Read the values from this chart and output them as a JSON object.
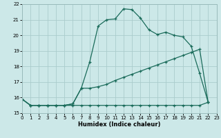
{
  "xlabel": "Humidex (Indice chaleur)",
  "bg_color": "#cce8e8",
  "grid_color": "#aacccc",
  "line_color": "#1a6b5a",
  "xlim": [
    0,
    23
  ],
  "ylim": [
    15,
    22
  ],
  "xticks": [
    0,
    1,
    2,
    3,
    4,
    5,
    6,
    7,
    8,
    9,
    10,
    11,
    12,
    13,
    14,
    15,
    16,
    17,
    18,
    19,
    20,
    21,
    22,
    23
  ],
  "yticks": [
    15,
    16,
    17,
    18,
    19,
    20,
    21,
    22
  ],
  "line1_x": [
    0,
    1,
    2,
    3,
    4,
    5,
    6,
    7,
    8,
    9,
    10,
    11,
    12,
    13,
    14,
    15,
    16,
    17,
    18,
    19,
    20,
    21,
    22
  ],
  "line1_y": [
    15.9,
    15.5,
    15.5,
    15.5,
    15.5,
    15.5,
    15.6,
    16.6,
    18.3,
    20.6,
    21.0,
    21.05,
    21.7,
    21.65,
    21.1,
    20.35,
    20.05,
    20.2,
    20.0,
    19.9,
    19.3,
    17.55,
    15.7
  ],
  "line2_x": [
    0,
    1,
    2,
    3,
    4,
    5,
    6,
    7,
    8,
    9,
    10,
    11,
    12,
    13,
    14,
    15,
    16,
    17,
    18,
    19,
    20,
    21,
    22
  ],
  "line2_y": [
    15.9,
    15.5,
    15.5,
    15.5,
    15.5,
    15.5,
    15.6,
    16.6,
    16.6,
    16.7,
    16.85,
    17.1,
    17.3,
    17.5,
    17.7,
    17.9,
    18.1,
    18.3,
    18.5,
    18.7,
    18.9,
    19.1,
    15.7
  ],
  "line3_x": [
    0,
    1,
    2,
    3,
    4,
    5,
    6,
    7,
    8,
    9,
    10,
    11,
    12,
    13,
    14,
    15,
    16,
    17,
    18,
    19,
    20,
    21,
    22
  ],
  "line3_y": [
    15.9,
    15.5,
    15.5,
    15.5,
    15.5,
    15.5,
    15.5,
    15.5,
    15.5,
    15.5,
    15.5,
    15.5,
    15.5,
    15.5,
    15.5,
    15.5,
    15.5,
    15.5,
    15.5,
    15.5,
    15.5,
    15.5,
    15.7
  ]
}
